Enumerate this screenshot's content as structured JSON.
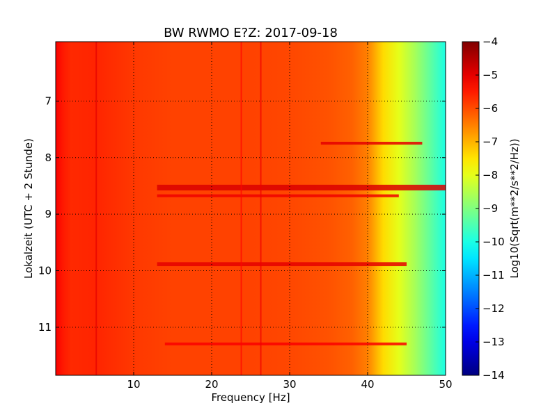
{
  "chart_data": {
    "type": "heatmap",
    "title": "BW RWMO E?Z: 2017-09-18",
    "xlabel": "Frequency [Hz]",
    "ylabel": "Lokalzeit (UTC + 2 Stunde)",
    "colorbar_label": "Log10(Sqrt(m**2/s**2/Hz))",
    "xlim": [
      0,
      50
    ],
    "ylim": [
      5.95,
      11.85
    ],
    "y_inverted": true,
    "x_ticks": [
      10,
      20,
      30,
      40,
      50
    ],
    "x_tick_labels": [
      "10",
      "20",
      "30",
      "40",
      "50"
    ],
    "y_ticks": [
      7,
      8,
      9,
      10,
      11
    ],
    "y_tick_labels": [
      "7",
      "8",
      "9",
      "10",
      "11"
    ],
    "grid": true,
    "colormap": "jet",
    "clim": [
      -14,
      -4
    ],
    "colorbar_ticks": [
      -4,
      -5,
      -6,
      -7,
      -8,
      -9,
      -10,
      -11,
      -12,
      -13,
      -14
    ],
    "colorbar_tick_labels": [
      "−4",
      "−5",
      "−6",
      "−7",
      "−8",
      "−9",
      "−10",
      "−11",
      "−12",
      "−13",
      "−14"
    ],
    "frequency_profile": {
      "x": [
        0,
        1,
        2,
        5,
        10,
        15,
        20,
        25,
        30,
        35,
        38,
        40,
        42,
        44,
        46,
        48,
        50
      ],
      "value": [
        -5.2,
        -5.5,
        -5.65,
        -5.6,
        -5.8,
        -5.9,
        -5.9,
        -5.9,
        -5.95,
        -6.05,
        -6.2,
        -6.5,
        -7.4,
        -8.0,
        -8.6,
        -9.3,
        -10.0
      ]
    },
    "bands": [
      {
        "t_start": 8.48,
        "t_end": 8.58,
        "f_start": 13,
        "f_end": 50,
        "value": -4.9
      },
      {
        "t_start": 8.65,
        "t_end": 8.7,
        "f_start": 13,
        "f_end": 44,
        "value": -5.1
      },
      {
        "t_start": 9.85,
        "t_end": 9.92,
        "f_start": 13,
        "f_end": 45,
        "value": -5.0
      },
      {
        "t_start": 7.72,
        "t_end": 7.77,
        "f_start": 34,
        "f_end": 47,
        "value": -5.0
      },
      {
        "t_start": 11.27,
        "t_end": 11.32,
        "f_start": 14,
        "f_end": 45,
        "value": -5.2
      }
    ],
    "vertical_lines": [
      {
        "f": 5.2,
        "value": -5.0
      },
      {
        "f": 23.8,
        "value": -5.3
      },
      {
        "f": 26.3,
        "value": -5.1
      }
    ]
  }
}
